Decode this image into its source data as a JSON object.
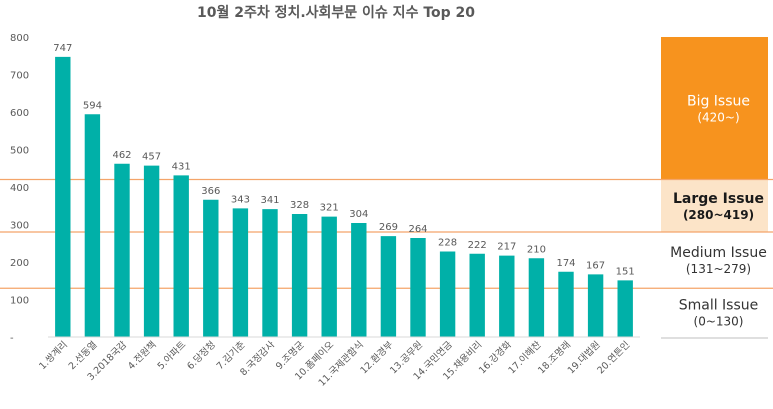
{
  "chart_data": {
    "type": "bar",
    "title": "10월 2주차 정치.사회부문 이슈 지수 Top 20",
    "xlabel": "",
    "ylabel": "",
    "ylim": [
      0,
      800
    ],
    "yticks": [
      "-",
      "100",
      "200",
      "300",
      "400",
      "500",
      "600",
      "700",
      "800"
    ],
    "grid": false,
    "legend": "none",
    "categories": [
      "1.쌍계리",
      "2.선동열",
      "3.2018국감",
      "4.전원책",
      "5.아파트",
      "6.당정청",
      "7.김기춘",
      "8.국정감사",
      "9.조명균",
      "10.폼페이오",
      "11.국제관함식",
      "12.환경부",
      "13.공무원",
      "14.국민연금",
      "15.채용비리",
      "16.강경화",
      "17.이해찬",
      "18.조명래",
      "19.대법원",
      "20.연튼인"
    ],
    "values": [
      747,
      594,
      462,
      457,
      431,
      366,
      343,
      341,
      328,
      321,
      304,
      269,
      264,
      228,
      222,
      217,
      210,
      174,
      167,
      151
    ],
    "bar_color": "#00B0A8",
    "threshold_color": "#F4A56A",
    "thresholds": [
      130,
      280,
      420
    ],
    "levels": [
      {
        "name": "Big Issue",
        "range": "(420~)",
        "from": 420,
        "to": 800,
        "fill": "#F7931E",
        "text_color": "#FFFFFF"
      },
      {
        "name": "Large Issue",
        "range": "(280~419)",
        "from": 280,
        "to": 419,
        "fill": "#FCE4C8",
        "text_color": "#1A1A1A"
      },
      {
        "name": "Medium Issue",
        "range": "(131~279)",
        "from": 131,
        "to": 279,
        "fill": "#FFFFFF",
        "text_color": "#333333"
      },
      {
        "name": "Small Issue",
        "range": "(0~130)",
        "from": 0,
        "to": 130,
        "fill": "#FFFFFF",
        "text_color": "#333333"
      }
    ]
  }
}
